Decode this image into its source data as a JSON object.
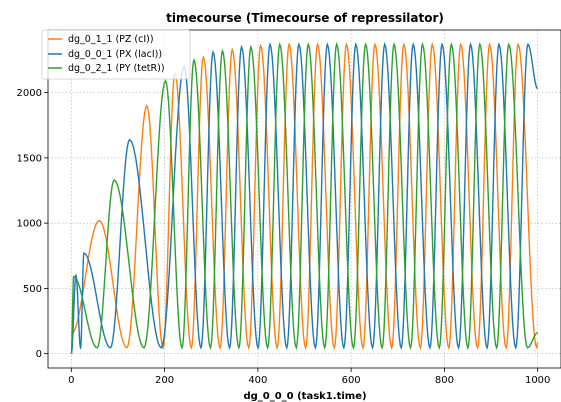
{
  "chart_data": {
    "type": "line",
    "title": "timecourse (Timecourse of repressilator)",
    "xlabel": "dg_0_0_0 (task1.time)",
    "ylabel": "",
    "xlim": [
      -50,
      1050
    ],
    "ylim": [
      -110,
      2480
    ],
    "xticks": [
      0,
      200,
      400,
      600,
      800,
      1000
    ],
    "yticks": [
      0,
      500,
      1000,
      1500,
      2000
    ],
    "grid": true,
    "legend_position": "upper-left",
    "series": [
      {
        "name": "dg_0_1_1 (PZ (cI))",
        "color": "#ff7f0e",
        "baseline": 45,
        "start": 150,
        "peaks": [
          [
            60,
            1020
          ],
          [
            162,
            1900
          ],
          [
            222,
            2150
          ],
          [
            283,
            2270
          ],
          [
            345,
            2330
          ],
          [
            406,
            2360
          ],
          [
            467,
            2370
          ],
          [
            528,
            2370
          ],
          [
            590,
            2370
          ],
          [
            651,
            2370
          ],
          [
            713,
            2370
          ],
          [
            774,
            2370
          ],
          [
            835,
            2370
          ],
          [
            897,
            2370
          ],
          [
            958,
            2370
          ]
        ]
      },
      {
        "name": "dg_0_0_1 (PX (lacI))",
        "color": "#1f77b4",
        "baseline": 45,
        "start": 0,
        "peaks": [
          [
            10,
            600
          ],
          [
            27,
            770
          ],
          [
            125,
            1640
          ],
          [
            242,
            2200
          ],
          [
            304,
            2310
          ],
          [
            365,
            2350
          ],
          [
            426,
            2370
          ],
          [
            488,
            2370
          ],
          [
            549,
            2370
          ],
          [
            610,
            2370
          ],
          [
            672,
            2370
          ],
          [
            733,
            2370
          ],
          [
            795,
            2370
          ],
          [
            856,
            2370
          ],
          [
            917,
            2370
          ],
          [
            979,
            2370
          ]
        ],
        "end_value": 2030
      },
      {
        "name": "dg_0_2_1 (PY (tetR))",
        "color": "#2ca02c",
        "baseline": 45,
        "start": 0,
        "peaks": [
          [
            5,
            590
          ],
          [
            92,
            1330
          ],
          [
            202,
            2090
          ],
          [
            263,
            2250
          ],
          [
            324,
            2320
          ],
          [
            385,
            2350
          ],
          [
            447,
            2370
          ],
          [
            508,
            2370
          ],
          [
            569,
            2370
          ],
          [
            631,
            2370
          ],
          [
            692,
            2370
          ],
          [
            753,
            2370
          ],
          [
            815,
            2370
          ],
          [
            876,
            2370
          ],
          [
            938,
            2370
          ]
        ],
        "end_value": 160
      }
    ]
  }
}
